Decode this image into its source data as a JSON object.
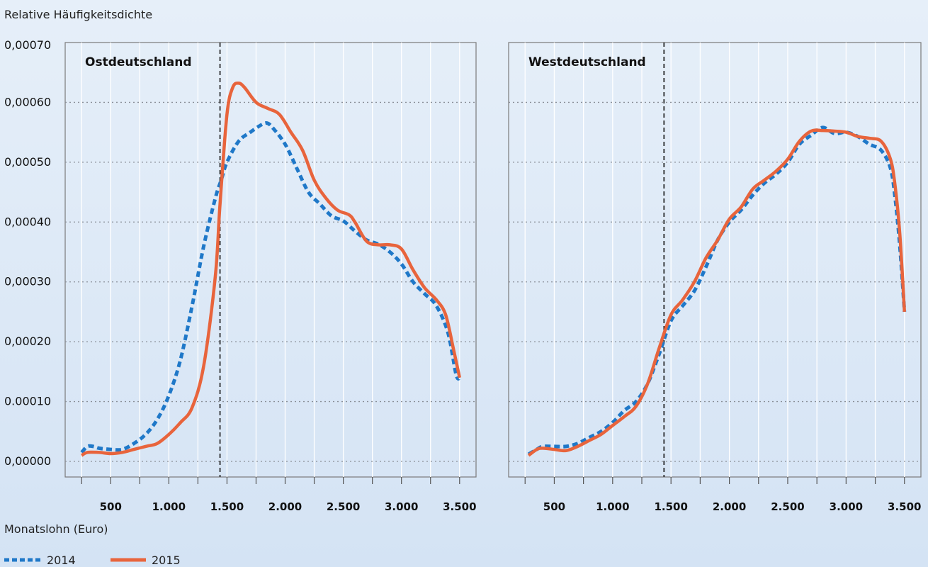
{
  "ylabel": "Relative Häufigkeitsdichte",
  "xlabel": "Monatslohn (Euro)",
  "legend": [
    {
      "label": "2014",
      "color": "#1f78c8",
      "style": "dashed"
    },
    {
      "label": "2015",
      "color": "#e8643c",
      "style": "solid"
    }
  ],
  "chart_data": [
    {
      "type": "line",
      "title": "Ostdeutschland",
      "xlabel": "Monatslohn (Euro)",
      "ylabel": "Relative Häufigkeitsdichte",
      "xlim": [
        200,
        3550
      ],
      "ylim": [
        0,
        0.0007
      ],
      "x_ticks": [
        500,
        1000,
        1500,
        2000,
        2500,
        3000,
        3500
      ],
      "x_tick_labels": [
        "500",
        "1.000",
        "1.500",
        "2.000",
        "2.500",
        "3.000",
        "3.500"
      ],
      "y_ticks": [
        0,
        0.0001,
        0.0002,
        0.0003,
        0.0004,
        0.0005,
        0.0006,
        0.0007
      ],
      "y_tick_labels": [
        "0,00000",
        "0.00010",
        "0,00020",
        "0,00030",
        "0,00040",
        "0,00050",
        "0,00060",
        "0,00070"
      ],
      "reference_line_x": 1440,
      "grid": true,
      "series": [
        {
          "name": "2014",
          "points": [
            [
              250,
              1.5e-05
            ],
            [
              300,
              2.5e-05
            ],
            [
              350,
              2.5e-05
            ],
            [
              400,
              2.2e-05
            ],
            [
              500,
              2e-05
            ],
            [
              600,
              2e-05
            ],
            [
              700,
              3e-05
            ],
            [
              800,
              4.5e-05
            ],
            [
              900,
              7e-05
            ],
            [
              1000,
              0.00011
            ],
            [
              1100,
              0.00017
            ],
            [
              1200,
              0.00026
            ],
            [
              1300,
              0.00036
            ],
            [
              1400,
              0.00044
            ],
            [
              1450,
              0.00047
            ],
            [
              1500,
              0.0005
            ],
            [
              1600,
              0.000535
            ],
            [
              1700,
              0.00055
            ],
            [
              1800,
              0.000563
            ],
            [
              1850,
              0.000565
            ],
            [
              1900,
              0.000556
            ],
            [
              2000,
              0.00053
            ],
            [
              2100,
              0.00049
            ],
            [
              2200,
              0.00045
            ],
            [
              2300,
              0.00043
            ],
            [
              2400,
              0.00041
            ],
            [
              2500,
              0.000402
            ],
            [
              2600,
              0.000385
            ],
            [
              2700,
              0.00037
            ],
            [
              2800,
              0.000363
            ],
            [
              2900,
              0.00035
            ],
            [
              3000,
              0.00033
            ],
            [
              3100,
              0.0003
            ],
            [
              3200,
              0.00028
            ],
            [
              3300,
              0.00026
            ],
            [
              3400,
              0.000215
            ],
            [
              3470,
              0.000145
            ],
            [
              3500,
              0.00014
            ]
          ]
        },
        {
          "name": "2015",
          "points": [
            [
              250,
              1e-05
            ],
            [
              300,
              1.5e-05
            ],
            [
              400,
              1.5e-05
            ],
            [
              500,
              1.3e-05
            ],
            [
              600,
              1.5e-05
            ],
            [
              700,
              2e-05
            ],
            [
              800,
              2.5e-05
            ],
            [
              900,
              3e-05
            ],
            [
              1000,
              4.5e-05
            ],
            [
              1100,
              6.5e-05
            ],
            [
              1200,
              9e-05
            ],
            [
              1300,
              0.00016
            ],
            [
              1400,
              0.00031
            ],
            [
              1440,
              0.00043
            ],
            [
              1500,
              0.00058
            ],
            [
              1550,
              0.000625
            ],
            [
              1600,
              0.000632
            ],
            [
              1650,
              0.000625
            ],
            [
              1750,
              0.0006
            ],
            [
              1850,
              0.00059
            ],
            [
              1950,
              0.00058
            ],
            [
              2050,
              0.00055
            ],
            [
              2150,
              0.00052
            ],
            [
              2250,
              0.00047
            ],
            [
              2350,
              0.00044
            ],
            [
              2450,
              0.00042
            ],
            [
              2550,
              0.000412
            ],
            [
              2600,
              0.0004
            ],
            [
              2700,
              0.000368
            ],
            [
              2800,
              0.000362
            ],
            [
              2900,
              0.000362
            ],
            [
              3000,
              0.000355
            ],
            [
              3100,
              0.00032
            ],
            [
              3200,
              0.00029
            ],
            [
              3300,
              0.00027
            ],
            [
              3380,
              0.000245
            ],
            [
              3450,
              0.000185
            ],
            [
              3500,
              0.00014
            ]
          ]
        }
      ]
    },
    {
      "type": "line",
      "title": "Westdeutschland",
      "xlabel": "Monatslohn (Euro)",
      "ylabel": "Relative Häufigkeitsdichte",
      "xlim": [
        200,
        3550
      ],
      "ylim": [
        0,
        0.0007
      ],
      "x_ticks": [
        500,
        1000,
        1500,
        2000,
        2500,
        3000,
        3500
      ],
      "x_tick_labels": [
        "500",
        "1.000",
        "1.500",
        "2.000",
        "2.500",
        "3.000",
        "3.500"
      ],
      "reference_line_x": 1440,
      "grid": true,
      "series": [
        {
          "name": "2014",
          "points": [
            [
              280,
              1.2e-05
            ],
            [
              350,
              2e-05
            ],
            [
              400,
              2.5e-05
            ],
            [
              500,
              2.5e-05
            ],
            [
              600,
              2.5e-05
            ],
            [
              700,
              3e-05
            ],
            [
              800,
              4e-05
            ],
            [
              900,
              5e-05
            ],
            [
              1000,
              6.5e-05
            ],
            [
              1100,
              8.5e-05
            ],
            [
              1200,
              0.0001
            ],
            [
              1300,
              0.00013
            ],
            [
              1400,
              0.00018
            ],
            [
              1500,
              0.000235
            ],
            [
              1600,
              0.00026
            ],
            [
              1700,
              0.000285
            ],
            [
              1800,
              0.000325
            ],
            [
              1900,
              0.00037
            ],
            [
              2000,
              0.0004
            ],
            [
              2100,
              0.00042
            ],
            [
              2200,
              0.000445
            ],
            [
              2300,
              0.000465
            ],
            [
              2400,
              0.00048
            ],
            [
              2500,
              0.0005
            ],
            [
              2600,
              0.00053
            ],
            [
              2700,
              0.000545
            ],
            [
              2800,
              0.000558
            ],
            [
              2900,
              0.000548
            ],
            [
              3000,
              0.00055
            ],
            [
              3100,
              0.000543
            ],
            [
              3200,
              0.00053
            ],
            [
              3300,
              0.00052
            ],
            [
              3380,
              0.00049
            ],
            [
              3420,
              0.00044
            ],
            [
              3460,
              0.00036
            ],
            [
              3500,
              0.00025
            ]
          ]
        },
        {
          "name": "2015",
          "points": [
            [
              280,
              1e-05
            ],
            [
              350,
              2e-05
            ],
            [
              400,
              2.2e-05
            ],
            [
              500,
              2e-05
            ],
            [
              600,
              1.8e-05
            ],
            [
              700,
              2.5e-05
            ],
            [
              800,
              3.5e-05
            ],
            [
              900,
              4.5e-05
            ],
            [
              1000,
              6e-05
            ],
            [
              1100,
              7.5e-05
            ],
            [
              1200,
              9.2e-05
            ],
            [
              1300,
              0.00013
            ],
            [
              1400,
              0.00019
            ],
            [
              1500,
              0.000245
            ],
            [
              1600,
              0.00027
            ],
            [
              1700,
              0.0003
            ],
            [
              1800,
              0.00034
            ],
            [
              1900,
              0.00037
            ],
            [
              2000,
              0.000405
            ],
            [
              2100,
              0.000425
            ],
            [
              2200,
              0.000455
            ],
            [
              2300,
              0.00047
            ],
            [
              2400,
              0.000485
            ],
            [
              2500,
              0.000505
            ],
            [
              2600,
              0.000535
            ],
            [
              2700,
              0.000552
            ],
            [
              2800,
              0.000553
            ],
            [
              2900,
              0.000552
            ],
            [
              3000,
              0.00055
            ],
            [
              3100,
              0.000543
            ],
            [
              3200,
              0.00054
            ],
            [
              3300,
              0.000535
            ],
            [
              3380,
              0.000505
            ],
            [
              3420,
              0.00046
            ],
            [
              3460,
              0.00038
            ],
            [
              3500,
              0.00025
            ]
          ]
        }
      ]
    }
  ]
}
